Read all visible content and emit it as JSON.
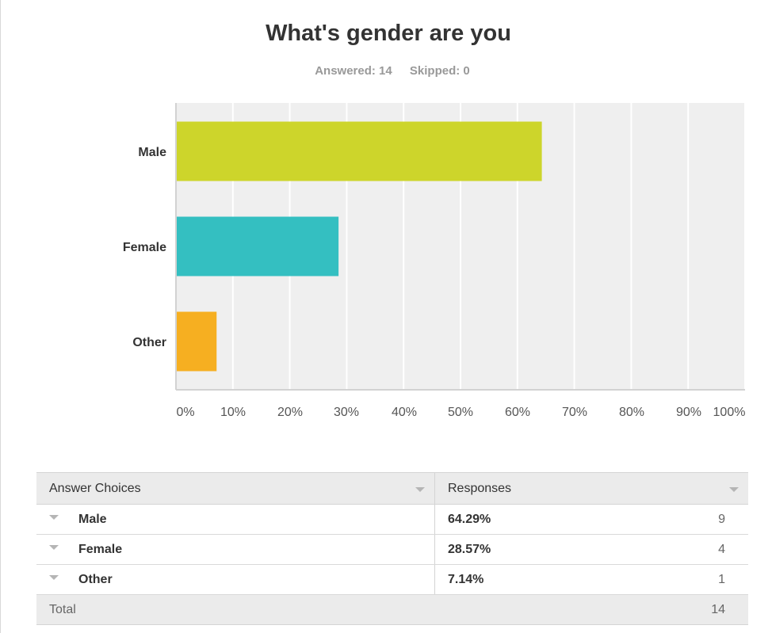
{
  "survey": {
    "question": "What's gender are you",
    "answered_label": "Answered: 14",
    "skipped_label": "Skipped: 0"
  },
  "chart_data": {
    "type": "bar",
    "orientation": "horizontal",
    "title": "What's gender are you",
    "categories": [
      "Male",
      "Female",
      "Other"
    ],
    "values": [
      64.29,
      28.57,
      7.14
    ],
    "colors": [
      "#cdd52b",
      "#34bfc1",
      "#f6af21"
    ],
    "xlim": [
      0,
      100
    ],
    "xticks": [
      "0%",
      "10%",
      "20%",
      "30%",
      "40%",
      "50%",
      "60%",
      "70%",
      "80%",
      "90%",
      "100%"
    ],
    "grid": true,
    "background": "#efefef"
  },
  "table": {
    "headers": {
      "choices": "Answer Choices",
      "responses": "Responses"
    },
    "rows": [
      {
        "choice": "Male",
        "percent": "64.29%",
        "count": "9"
      },
      {
        "choice": "Female",
        "percent": "28.57%",
        "count": "4"
      },
      {
        "choice": "Other",
        "percent": "7.14%",
        "count": "1"
      }
    ],
    "total_label": "Total",
    "total_count": "14"
  }
}
